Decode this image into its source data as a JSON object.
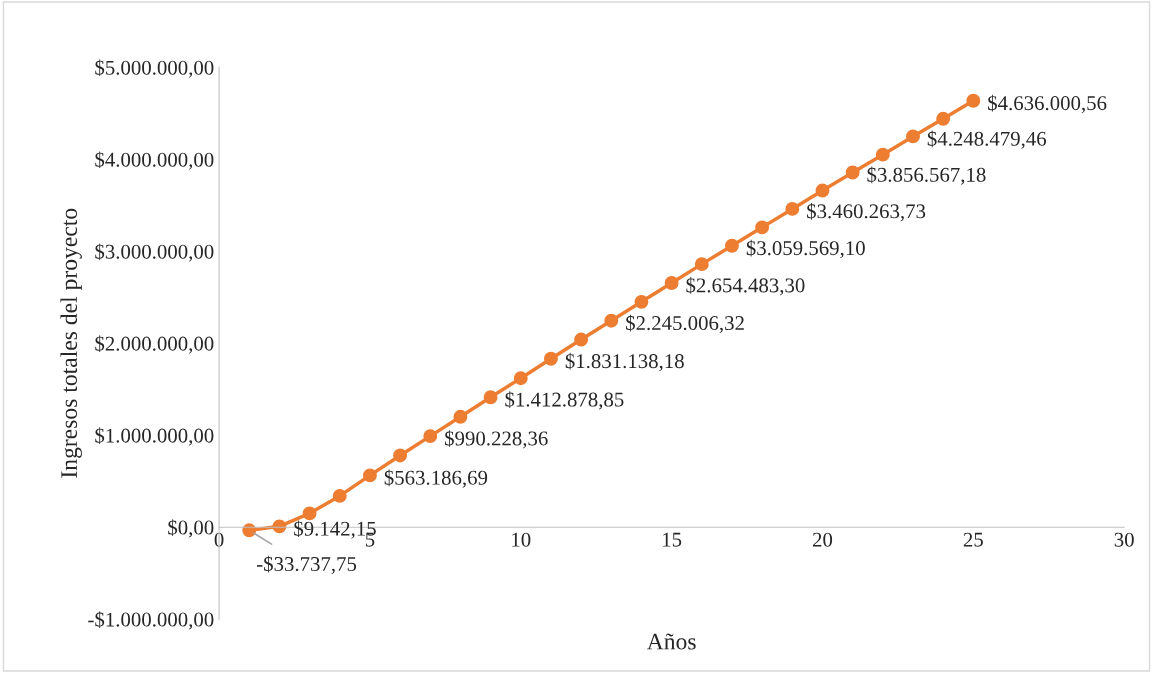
{
  "chart_data": {
    "type": "line",
    "xlabel": "Años",
    "ylabel": "Ingresos totales del proyecto",
    "x": [
      1,
      2,
      3,
      4,
      5,
      6,
      7,
      8,
      9,
      10,
      11,
      12,
      13,
      14,
      15,
      16,
      17,
      18,
      19,
      20,
      21,
      22,
      23,
      24,
      25
    ],
    "series": [
      {
        "color": "#ed7d31",
        "values": [
          -33737.75,
          9142.15,
          150000,
          340000,
          563186.69,
          780000,
          990228.36,
          1200000,
          1412878.85,
          1620000,
          1831138.18,
          2040000,
          2245006.32,
          2450000,
          2654483.3,
          2860000,
          3059569.1,
          3260000,
          3460263.73,
          3660000,
          3856567.18,
          4050000,
          4248479.46,
          4440000,
          4636000.56
        ],
        "value_labels": [
          "-$33.737,75",
          "$9.142,15",
          null,
          null,
          "$563.186,69",
          null,
          "$990.228,36",
          null,
          "$1.412.878,85",
          null,
          "$1.831.138,18",
          null,
          "$2.245.006,32",
          null,
          "$2.654.483,30",
          null,
          "$3.059.569,10",
          null,
          "$3.460.263,73",
          null,
          "$3.856.567,18",
          null,
          "$4.248.479,46",
          null,
          "$4.636.000,56"
        ]
      }
    ],
    "xlim": [
      0,
      30
    ],
    "xticks": [
      0,
      5,
      10,
      15,
      20,
      25,
      30
    ],
    "ylim": [
      -1000000,
      5000000
    ],
    "yticks": [
      {
        "value": -1000000,
        "label": "-$1.000.000,00"
      },
      {
        "value": 0,
        "label": "$0,00"
      },
      {
        "value": 1000000,
        "label": "$1.000.000,00"
      },
      {
        "value": 2000000,
        "label": "$2.000.000,00"
      },
      {
        "value": 3000000,
        "label": "$3.000.000,00"
      },
      {
        "value": 4000000,
        "label": "$4.000.000,00"
      },
      {
        "value": 5000000,
        "label": "$5.000.000,00"
      }
    ],
    "grid": false,
    "marker": "circle",
    "line_style": "solid"
  }
}
